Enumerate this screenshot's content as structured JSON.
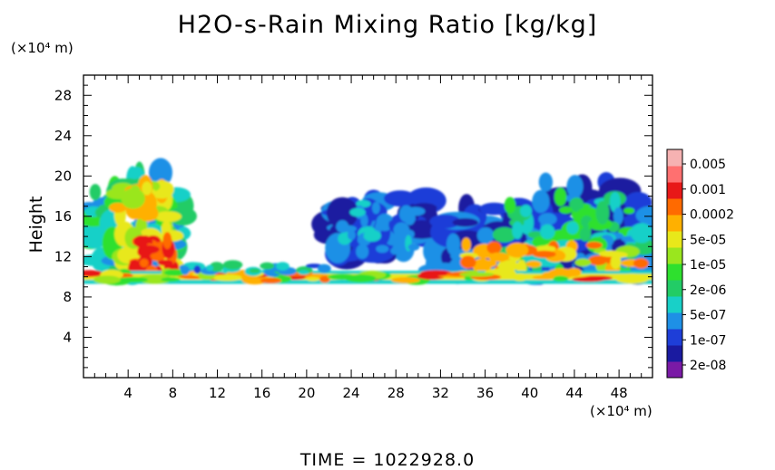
{
  "chart_data": {
    "type": "heatmap",
    "title": "H2O-s-Rain Mixing Ratio [kg/kg]",
    "ylabel": "Height",
    "y_unit": "(×10⁴ m)",
    "x_unit": "(×10⁴ m)",
    "footer": "TIME =  1022928.0",
    "xlim": [
      0,
      51
    ],
    "ylim": [
      0,
      30
    ],
    "x_ticks": [
      4,
      8,
      12,
      16,
      20,
      24,
      28,
      32,
      36,
      40,
      44,
      48
    ],
    "y_ticks": [
      4,
      8,
      12,
      16,
      20,
      24,
      28
    ],
    "colorbar": {
      "labels": [
        "0.005",
        "0.001",
        "0.0002",
        "5e-05",
        "1e-05",
        "2e-06",
        "5e-07",
        "1e-07",
        "2e-08"
      ],
      "colors": [
        "#7a1aa6",
        "#1a1aa0",
        "#1e3ed8",
        "#1e90e6",
        "#18d0c8",
        "#22cc66",
        "#2ee02e",
        "#9ae61e",
        "#e8e81a",
        "#ffb000",
        "#ff6a00",
        "#e81818",
        "#ff7070",
        "#f6b2b2"
      ]
    },
    "regions": [
      {
        "name": "low-layer-rain-band",
        "x": [
          0,
          51
        ],
        "y": [
          9.2,
          10.8
        ],
        "level": "1e-05 to 0.001"
      },
      {
        "name": "storm-cell-left",
        "x": [
          1,
          9
        ],
        "y": [
          9,
          21
        ],
        "level": "up to 0.001"
      },
      {
        "name": "cloud-middle",
        "x": [
          22,
          31
        ],
        "y": [
          11,
          18.5
        ],
        "level": "2e-08 to 2e-06"
      },
      {
        "name": "cloud-right",
        "x": [
          32,
          51
        ],
        "y": [
          10,
          19.8
        ],
        "level": "2e-08 to 0.0002"
      }
    ]
  }
}
